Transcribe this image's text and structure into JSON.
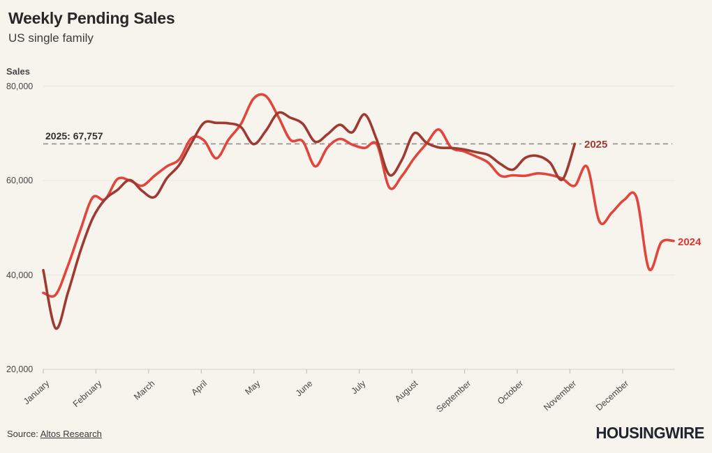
{
  "header": {
    "title": "Weekly Pending Sales",
    "subtitle": "US single family"
  },
  "axis_title": "Sales",
  "annotation": {
    "label": "2025: 67,757"
  },
  "series_labels": {
    "y2025": "2025",
    "y2024": "2024"
  },
  "footer": {
    "source_prefix": "Source: ",
    "source_link": "Altos Research",
    "logo": "HOUSINGWIRE"
  },
  "colors": {
    "line_2025": "#9e3a32",
    "line_2024": "#e2453c",
    "label_2025": "#9e3a32",
    "label_2024": "#d93a2f",
    "reference_line": "#8d8d89",
    "grid": "#eae7df",
    "axis_line": "#dcd9d0",
    "tick": "#c6c2b8",
    "background": "#f7f4ed"
  },
  "chart_data": {
    "type": "line",
    "title": "Weekly Pending Sales",
    "subtitle": "US single family",
    "xlabel": "",
    "ylabel": "Sales",
    "x_unit": "week of year",
    "x_categories_months": [
      "January",
      "February",
      "March",
      "April",
      "May",
      "June",
      "July",
      "August",
      "September",
      "October",
      "November",
      "December"
    ],
    "ylim": [
      20000,
      80000
    ],
    "y_ticks": [
      {
        "value": 80000,
        "label": "80,000"
      },
      {
        "value": 60000,
        "label": "60,000"
      },
      {
        "value": 40000,
        "label": "40,000"
      },
      {
        "value": 20000,
        "label": "20,000"
      }
    ],
    "grid": "horizontal",
    "legend_position": "end-of-line-labels",
    "reference_line": {
      "label": "2025: 67,757",
      "value": 67757,
      "style": "dashed"
    },
    "series": [
      {
        "name": "2024",
        "color": "#e2453c",
        "values": [
          36200,
          35800,
          42000,
          49500,
          56400,
          56000,
          60300,
          60000,
          58900,
          61000,
          63000,
          64500,
          69000,
          68500,
          64700,
          68700,
          72000,
          77300,
          77900,
          73600,
          68600,
          68300,
          63000,
          67000,
          68800,
          67600,
          66900,
          67600,
          58500,
          60900,
          64700,
          67800,
          70800,
          67000,
          66200,
          65100,
          63800,
          61000,
          61100,
          61000,
          61500,
          61200,
          60400,
          58900,
          62900,
          51300,
          53200,
          55900,
          56400,
          41300,
          46900,
          47200
        ]
      },
      {
        "name": "2025",
        "color": "#9e3a32",
        "values": [
          41000,
          28700,
          36300,
          45000,
          52000,
          56000,
          58000,
          60100,
          57800,
          56500,
          60500,
          63300,
          68000,
          72200,
          72200,
          72100,
          71300,
          67700,
          70500,
          74300,
          73300,
          72000,
          68200,
          69800,
          71800,
          70200,
          74000,
          68500,
          61200,
          64300,
          70000,
          68000,
          67000,
          66900,
          66600,
          66000,
          65400,
          63500,
          62300,
          64800,
          65200,
          63800,
          60200,
          67757
        ]
      }
    ]
  }
}
